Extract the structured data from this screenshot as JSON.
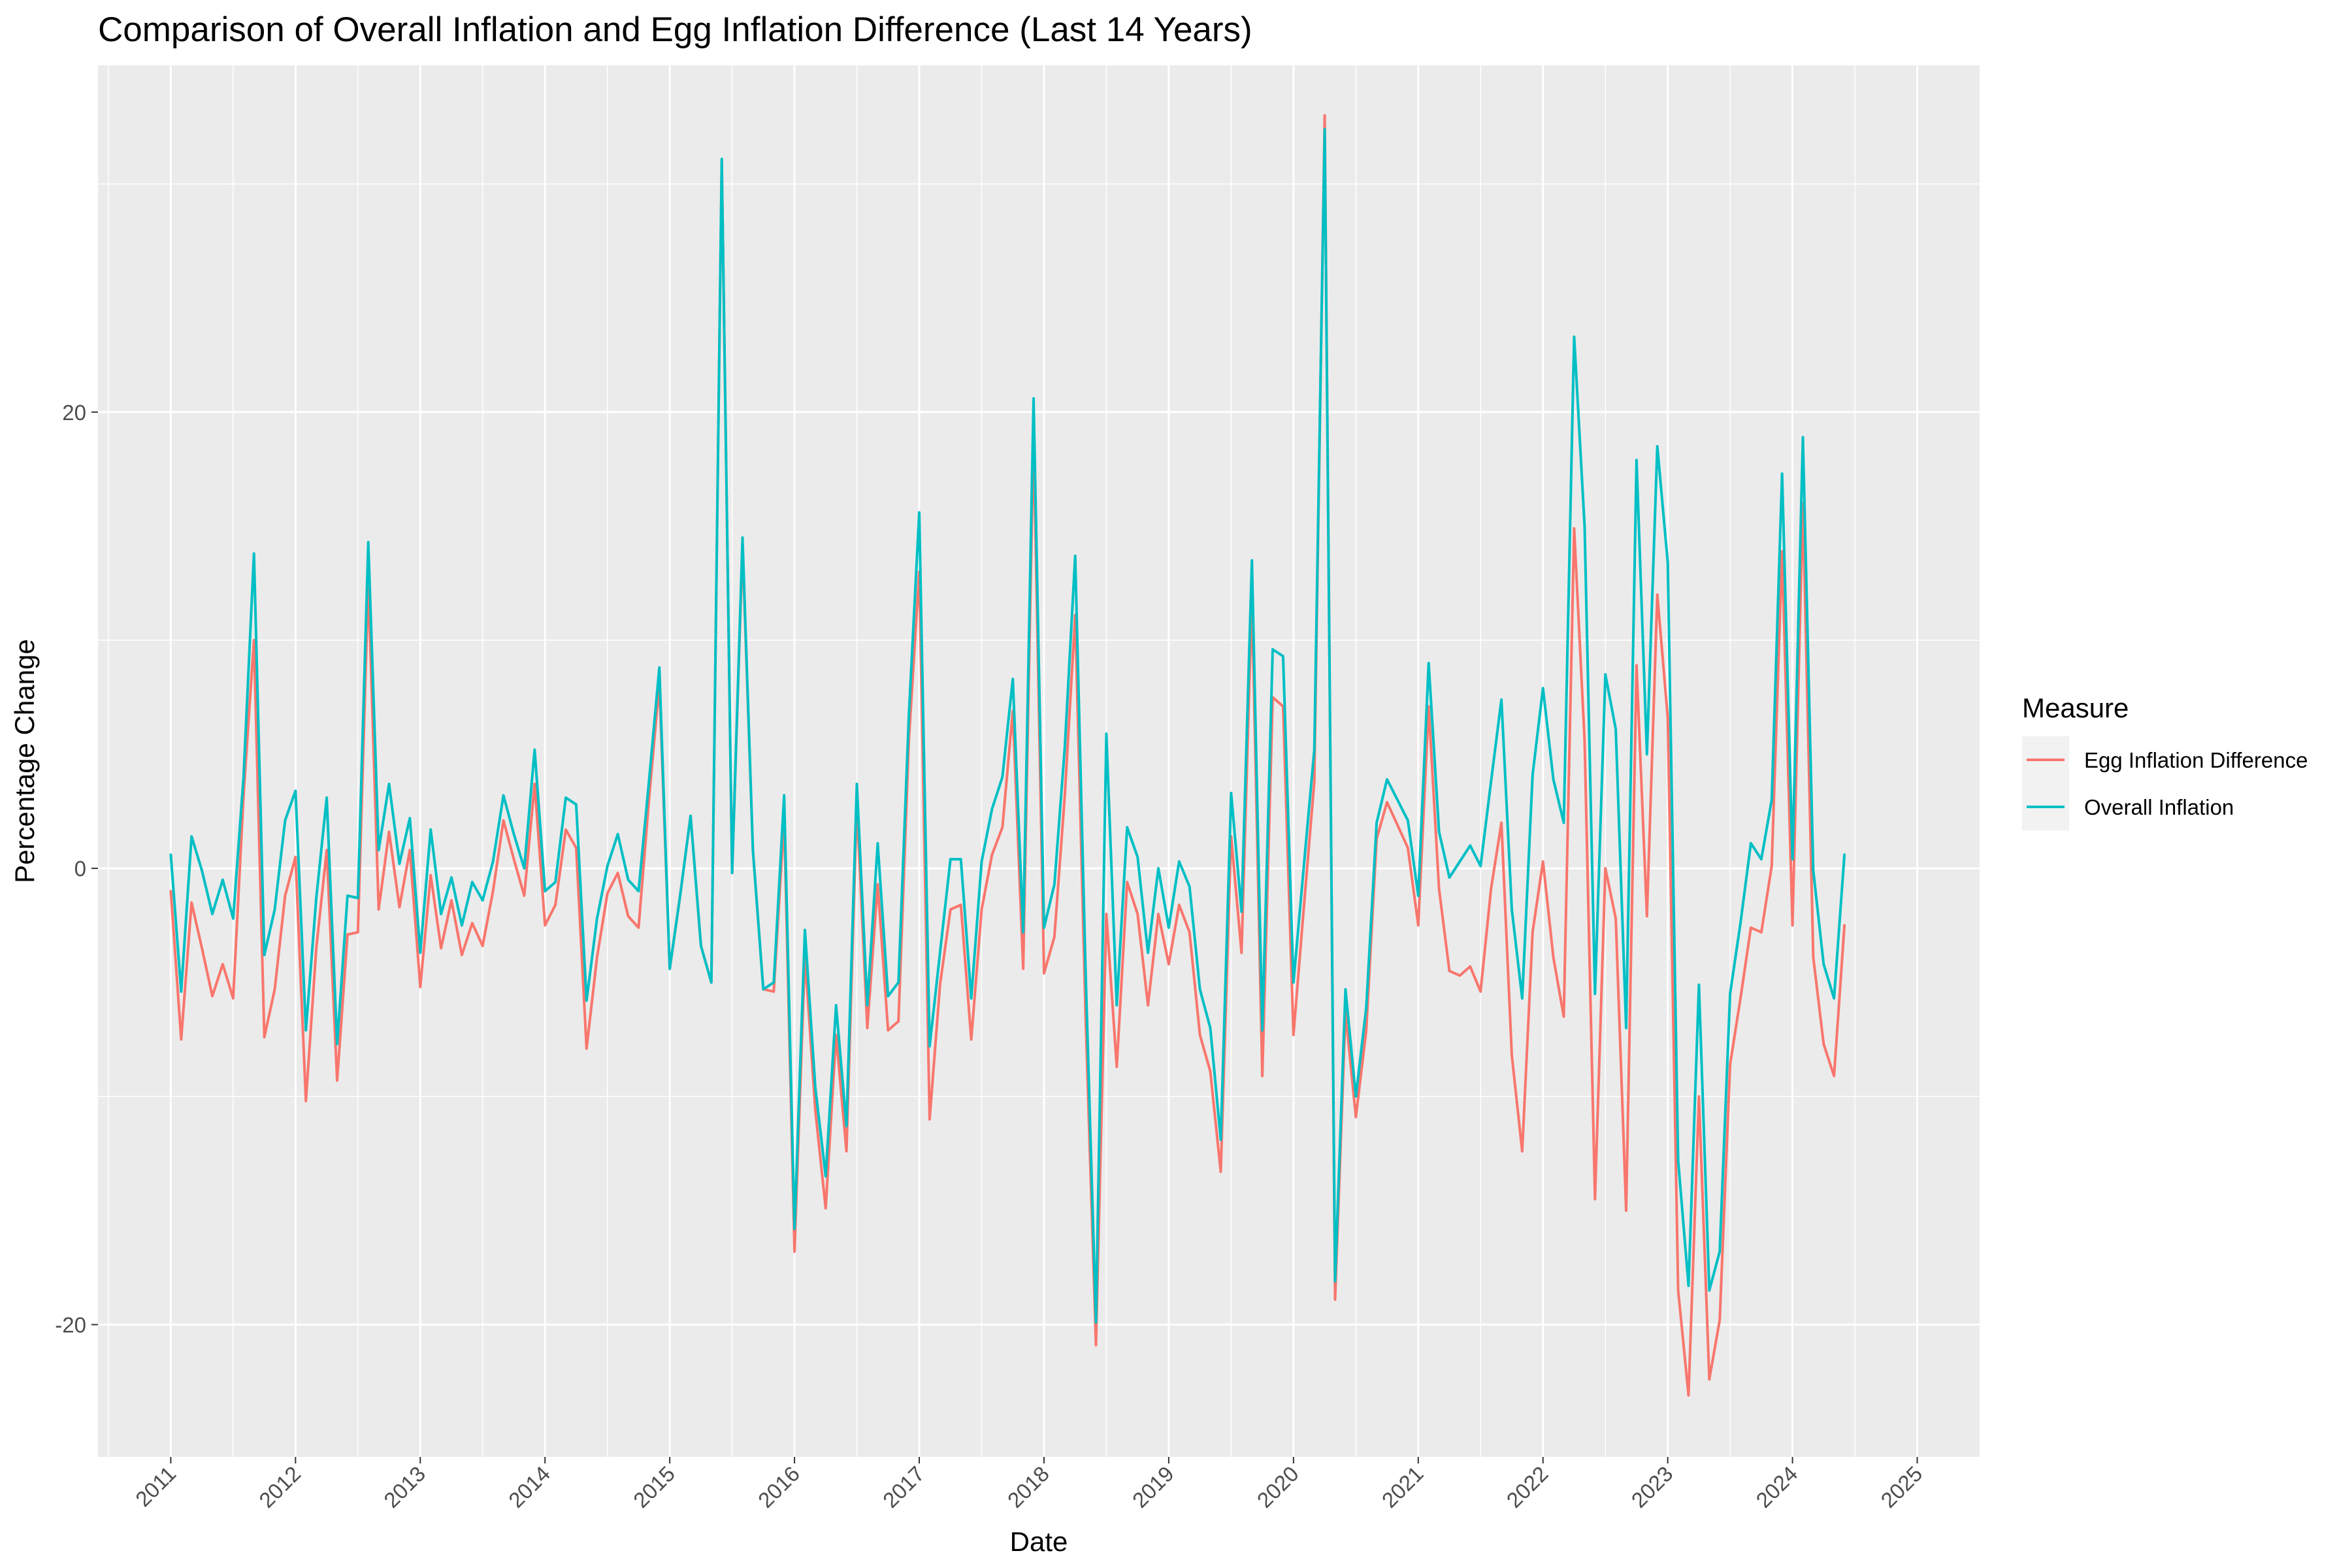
{
  "chart_data": {
    "type": "line",
    "title": "Comparison of Overall Inflation and Egg Inflation Difference (Last 14 Years)",
    "xlabel": "Date",
    "ylabel": "Percentage Change",
    "x_ticks": [
      "2011",
      "2012",
      "2013",
      "2014",
      "2015",
      "2016",
      "2017",
      "2018",
      "2019",
      "2020",
      "2021",
      "2022",
      "2023",
      "2024",
      "2025"
    ],
    "y_ticks": [
      -20,
      0,
      20
    ],
    "xlim": [
      "2010-06-01",
      "2025-07-01"
    ],
    "ylim": [
      -25.8,
      35.2
    ],
    "grid": true,
    "legend": {
      "title": "Measure",
      "position": "right"
    },
    "x_start": "2011-01",
    "x_step": "1 month",
    "series": [
      {
        "name": "Egg Inflation Difference",
        "color": "#F8766D",
        "values": [
          -1,
          -7.5,
          -1.5,
          -3.5,
          -5.6,
          -4.2,
          -5.7,
          3.2,
          10,
          -7.4,
          -5.3,
          -1.2,
          0.5,
          -10.2,
          -3.5,
          0.8,
          -9.3,
          -2.9,
          -2.8,
          12.5,
          -1.8,
          1.6,
          -1.7,
          0.8,
          -5.2,
          -0.3,
          -3.5,
          -1.4,
          -3.8,
          -2.4,
          -3.4,
          -1,
          2.1,
          0.4,
          -1.2,
          3.7,
          -2.5,
          -1.6,
          1.7,
          0.9,
          -7.9,
          -3.9,
          -1.1,
          -0.2,
          -2.1,
          -2.6,
          3,
          8.1,
          -4.4,
          -1.2,
          2.3,
          -3.4,
          -5,
          31,
          -0.2,
          14.1,
          0.8,
          -5.3,
          -5.4,
          2.2,
          -16.8,
          -3.8,
          -10.6,
          -14.9,
          -7.3,
          -12.4,
          2.8,
          -7,
          -0.7,
          -7.1,
          -6.7,
          5.6,
          13,
          -11,
          -5.1,
          -1.8,
          -1.6,
          -7.5,
          -1.8,
          0.6,
          1.8,
          6.9,
          -4.4,
          19,
          -4.6,
          -3,
          3.2,
          11.1,
          -6.5,
          -20.9,
          -2,
          -8.7,
          -0.6,
          -2,
          -6,
          -2,
          -4.2,
          -1.6,
          -2.8,
          -7.3,
          -8.9,
          -13.3,
          1.4,
          -3.7,
          11.9,
          -9.1,
          7.5,
          7.1,
          -7.3,
          -1.7,
          3.8,
          33,
          -18.9,
          -6.3,
          -10.9,
          -7.1,
          1.3,
          2.9,
          1.9,
          0.9,
          -2.5,
          7.1,
          -0.9,
          -4.5,
          -4.7,
          -4.3,
          -5.4,
          -0.9,
          2,
          -8.2,
          -12.4,
          -2.8,
          0.3,
          -3.9,
          -6.5,
          14.9,
          5.6,
          -14.5,
          0,
          -2.2,
          -15,
          8.9,
          -2.1,
          12,
          6.6,
          -18.5,
          -23.1,
          -10,
          -22.4,
          -19.8,
          -8.6,
          -5.7,
          -2.6,
          -2.8,
          0.1,
          13.9,
          -2.5,
          16,
          -3.9,
          -7.7,
          -9.1,
          -2.5
        ]
      },
      {
        "name": "Overall Inflation",
        "color": "#00BFC4",
        "values": [
          0.6,
          -5.4,
          1.4,
          -0.1,
          -2,
          -0.5,
          -2.2,
          4,
          13.8,
          -3.8,
          -1.8,
          2.1,
          3.4,
          -7.1,
          -1.3,
          3.1,
          -7.7,
          -1.2,
          -1.3,
          14.3,
          0.8,
          3.7,
          0.2,
          2.2,
          -3.7,
          1.7,
          -2,
          -0.4,
          -2.5,
          -0.6,
          -1.4,
          0.3,
          3.2,
          1.5,
          0,
          5.2,
          -1,
          -0.6,
          3.1,
          2.8,
          -5.8,
          -2.2,
          0.1,
          1.5,
          -0.5,
          -1,
          3.8,
          8.8,
          -4.4,
          -1.2,
          2.3,
          -3.4,
          -5,
          31.1,
          -0.2,
          14.5,
          0.8,
          -5.3,
          -5,
          3.2,
          -15.8,
          -2.7,
          -9.6,
          -13.5,
          -6,
          -11.3,
          3.7,
          -6,
          1.1,
          -5.6,
          -5,
          6.7,
          15.6,
          -7.8,
          -3.7,
          0.4,
          0.4,
          -5.7,
          0.3,
          2.6,
          4,
          8.3,
          -2.8,
          20.6,
          -2.6,
          -0.7,
          5.3,
          13.7,
          -4.5,
          -19.9,
          5.9,
          -6,
          1.8,
          0.5,
          -3.7,
          0,
          -2.6,
          0.3,
          -0.8,
          -5.3,
          -7,
          -11.9,
          3.3,
          -1.9,
          13.5,
          -7.1,
          9.6,
          9.3,
          -5,
          0.1,
          5.2,
          32.4,
          -18.1,
          -5.3,
          -10,
          -6.1,
          2,
          3.9,
          3,
          2.1,
          -1.2,
          9,
          1.6,
          -0.4,
          0.3,
          1,
          0.1,
          3.8,
          7.4,
          -1.8,
          -5.7,
          4.1,
          7.9,
          3.9,
          2,
          23.3,
          15,
          -5.5,
          8.5,
          6.1,
          -7,
          17.9,
          5,
          18.5,
          13.4,
          -12.8,
          -18.3,
          -5.1,
          -18.5,
          -16.8,
          -5.5,
          -2.4,
          1.1,
          0.4,
          3,
          17.3,
          0.4,
          18.9,
          -0.1,
          -4.2,
          -5.7,
          0.6
        ]
      }
    ]
  }
}
